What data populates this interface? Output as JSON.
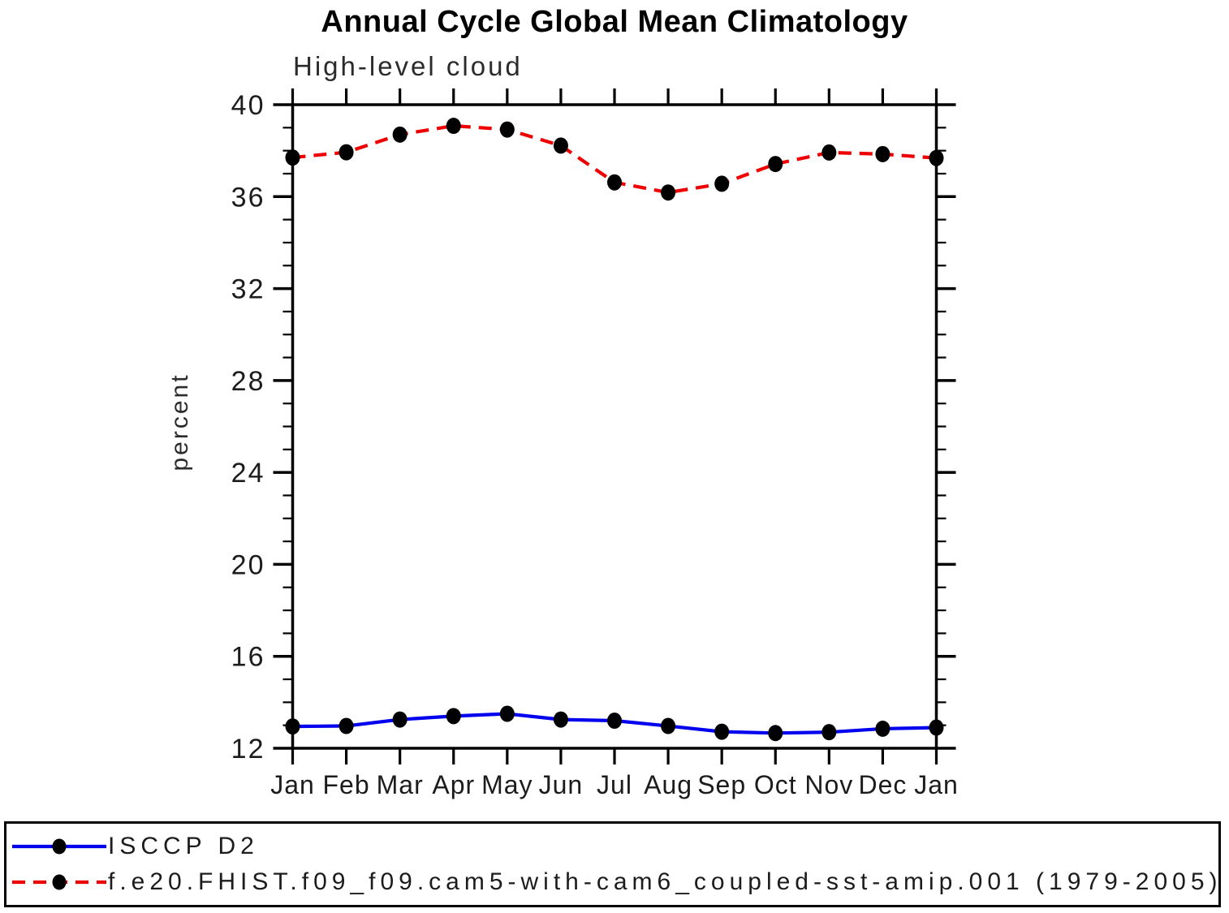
{
  "chart": {
    "title": "Annual Cycle Global Mean Climatology",
    "subtitle": "High-level cloud",
    "ylabel": "percent"
  },
  "chart_data": {
    "type": "line",
    "title": "Annual Cycle Global Mean Climatology",
    "subtitle": "High-level cloud",
    "xlabel": "",
    "ylabel": "percent",
    "x_tick_labels": [
      "Jan",
      "Feb",
      "Mar",
      "Apr",
      "May",
      "Jun",
      "Jul",
      "Aug",
      "Sep",
      "Oct",
      "Nov",
      "Dec",
      "Jan"
    ],
    "y_ticks": [
      12,
      16,
      20,
      24,
      28,
      32,
      36,
      40
    ],
    "y_minor_step": 1,
    "ylim": [
      12,
      40
    ],
    "grid": false,
    "frame": true,
    "legend_position": "bottom-box",
    "axis_color": "#000000",
    "marker_color": "#000000",
    "series": [
      {
        "name": "ISCCP D2",
        "color": "#0000ee",
        "style": "solid",
        "marker": "circle",
        "values": [
          12.95,
          12.97,
          13.25,
          13.4,
          13.5,
          13.25,
          13.2,
          12.97,
          12.72,
          12.66,
          12.7,
          12.85,
          12.9
        ]
      },
      {
        "name": "f.e20.FHIST.f09_f09.cam5-with-cam6_coupled-sst-amip.001 (1979-2005)",
        "color": "#ee0000",
        "style": "dashed",
        "marker": "circle",
        "values": [
          37.7,
          37.93,
          38.7,
          39.08,
          38.92,
          38.22,
          36.62,
          36.18,
          36.56,
          37.42,
          37.92,
          37.85,
          37.68
        ]
      }
    ]
  }
}
